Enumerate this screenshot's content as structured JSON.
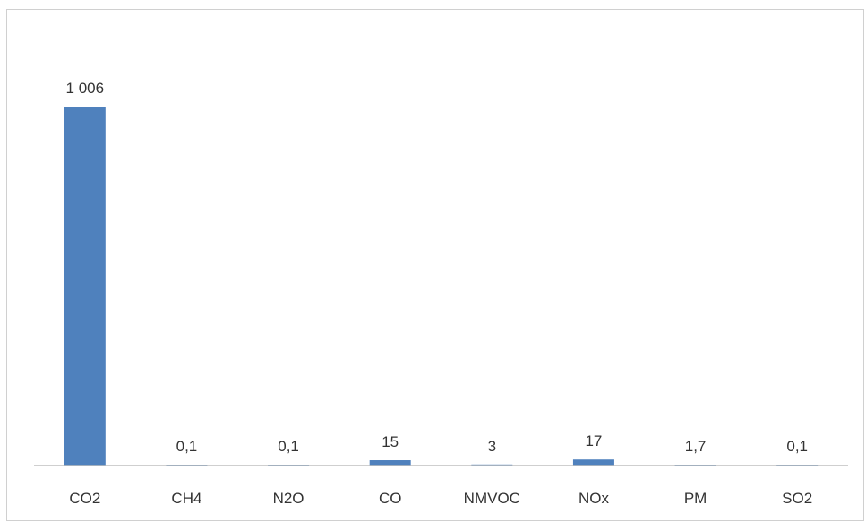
{
  "chart_data": {
    "type": "bar",
    "title": "",
    "xlabel": "",
    "ylabel": "",
    "categories": [
      "CO2",
      "CH4",
      "N2O",
      "CO",
      "NMVOC",
      "NOx",
      "PM",
      "SO2"
    ],
    "values": [
      1006,
      0.1,
      0.1,
      15,
      3,
      17,
      1.7,
      0.1
    ],
    "data_labels": [
      "1 006",
      "0,1",
      "0,1",
      "15",
      "3",
      "17",
      "1,7",
      "0,1"
    ],
    "ylim": [
      0,
      1006
    ],
    "grid": false,
    "legend": "none",
    "bar_color": "#4f81bd"
  }
}
